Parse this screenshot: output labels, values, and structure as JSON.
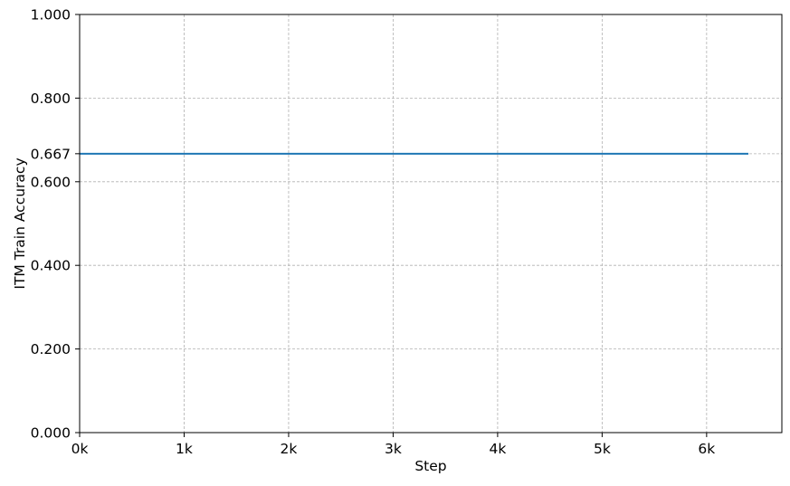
{
  "chart_data": {
    "type": "line",
    "title": "",
    "xlabel": "Step",
    "ylabel": "ITM Train Accuracy",
    "xlim": [
      0,
      6720
    ],
    "ylim": [
      0,
      1
    ],
    "grid": true,
    "x_ticks": [
      {
        "value": 0,
        "label": "0k"
      },
      {
        "value": 1000,
        "label": "1k"
      },
      {
        "value": 2000,
        "label": "2k"
      },
      {
        "value": 3000,
        "label": "3k"
      },
      {
        "value": 4000,
        "label": "4k"
      },
      {
        "value": 5000,
        "label": "5k"
      },
      {
        "value": 6000,
        "label": "6k"
      }
    ],
    "y_ticks": [
      {
        "value": 0,
        "label": "0.000"
      },
      {
        "value": 0.2,
        "label": "0.200"
      },
      {
        "value": 0.4,
        "label": "0.400"
      },
      {
        "value": 0.6,
        "label": "0.600"
      },
      {
        "value": 0.667,
        "label": "0.667"
      },
      {
        "value": 0.8,
        "label": "0.800"
      },
      {
        "value": 1,
        "label": "1.000"
      }
    ],
    "series": [
      {
        "color": "#1f77b4",
        "x": [
          0,
          1000,
          2000,
          3000,
          4000,
          5000,
          6000,
          6400
        ],
        "y": [
          0.667,
          0.667,
          0.667,
          0.667,
          0.667,
          0.667,
          0.667,
          0.667
        ]
      }
    ]
  }
}
